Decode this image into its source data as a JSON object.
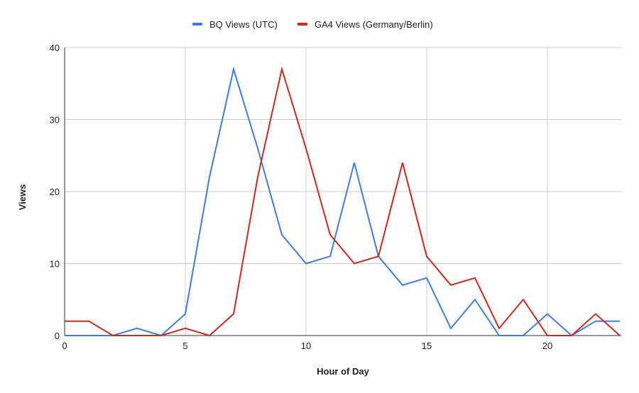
{
  "chart_data": {
    "type": "line",
    "title": "",
    "xlabel": "Hour of Day",
    "ylabel": "Views",
    "x": [
      0,
      1,
      2,
      3,
      4,
      5,
      6,
      7,
      8,
      9,
      10,
      11,
      12,
      13,
      14,
      15,
      16,
      17,
      18,
      19,
      20,
      21,
      22,
      23
    ],
    "xticks": [
      0,
      5,
      10,
      15,
      20
    ],
    "yticks": [
      0,
      10,
      20,
      30,
      40
    ],
    "xlim": [
      0,
      23
    ],
    "ylim": [
      0,
      40
    ],
    "grid": true,
    "legend_position": "top",
    "series": [
      {
        "name": "BQ Views (UTC)",
        "color": "#3d7bec",
        "values": [
          0,
          0,
          0,
          1,
          0,
          3,
          22,
          37,
          26,
          14,
          10,
          11,
          24,
          11,
          7,
          8,
          1,
          5,
          0,
          0,
          3,
          0,
          2,
          2
        ]
      },
      {
        "name": "GA4 Views (Germany/Berlin)",
        "color": "#d0281c",
        "values": [
          2,
          2,
          0,
          0,
          0,
          1,
          0,
          3,
          22,
          37,
          26,
          14,
          10,
          11,
          24,
          11,
          7,
          8,
          1,
          5,
          0,
          0,
          3,
          0
        ]
      }
    ]
  }
}
